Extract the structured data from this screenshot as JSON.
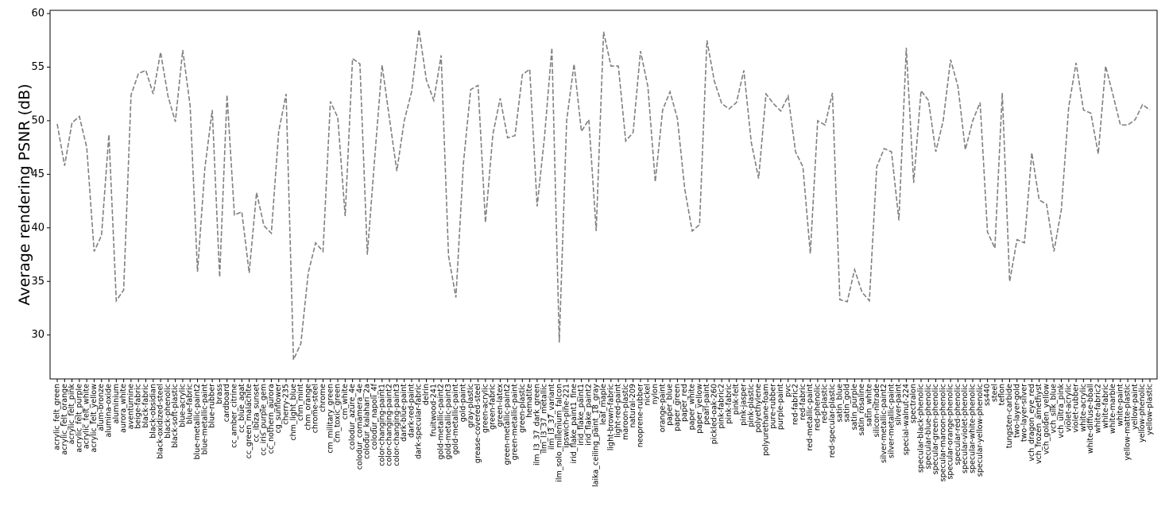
{
  "chart_data": {
    "type": "line",
    "y_label": "Average rendering PSNR (dB)",
    "categories": [
      "acrylic_felt_green",
      "acrylic_felt_orange",
      "acrylic_felt_pink",
      "acrylic_felt_purple",
      "acrylic_felt_white",
      "acrylic_felt_yellow",
      "alum-bronze",
      "alumina-oxide",
      "aluminium",
      "aurora_white",
      "aventurnine",
      "beige-fabric",
      "black-fabric",
      "black-obsidian",
      "black-oxidized-steel",
      "black-phenolic",
      "black-soft-plastic",
      "blue-acrylic",
      "blue-fabric",
      "blue-metallic-paint2",
      "blue-metallic-paint",
      "blue-rubber",
      "brass",
      "cardboard",
      "cc_amber_citrine",
      "cc_blue_agat",
      "cc_green_malachite",
      "cc_ibiza_sunset",
      "cc_iris_purple_gem",
      "cc_nothern_aurora",
      "cg_sunflower",
      "cherry-235",
      "chm_light_blue",
      "chm_mint",
      "chm_orange",
      "chrome-steel",
      "chrome",
      "cm_military_green",
      "cm_toxic_green",
      "cm_white",
      "colodur_azure_4e",
      "colodur_cornamera_4e",
      "colodur_kalahari_2a",
      "colodur_napoli_4f",
      "color-changing-paint1",
      "color-changing-paint2",
      "color-changing-paint3",
      "dark-blue-paint",
      "dark-red-paint",
      "dark-specular-fabric",
      "delrin",
      "fruitwood-241",
      "gold-metallic-paint2",
      "gold-metallic-paint3",
      "gold-metallic-paint",
      "gold-paint",
      "gray-plastic",
      "grease-covered-steel",
      "green-acrylic",
      "green-fabric",
      "green-latex",
      "green-metallic-paint2",
      "green-metallic-paint",
      "green-plastic",
      "hematite",
      "ilm_l3_37_dark_green",
      "ilm_l3_37_metallic",
      "ilm_l3_37_variant",
      "ilm_solo_millenium_falcon",
      "ipswich-pine-221",
      "irid_flake_paint1_fine",
      "irid_flake_paint1",
      "irid_flake_paint2",
      "laika_ceiling_paint_18_gray",
      "leaf_maple",
      "light-brown-fabric",
      "light-red-paint",
      "maroon-plastic",
      "natural-209",
      "neoprene-rubber",
      "nickel",
      "nylon",
      "orange-paint",
      "paper_blue",
      "paper_green",
      "paper_red",
      "paper_white",
      "paper_yellow",
      "pearl-paint",
      "pickled-oak-260",
      "pink-fabric2",
      "pink-fabric",
      "pink-felt",
      "pink-jasper",
      "pink-plastic",
      "polyethylene",
      "polyurethane-foam",
      "pure-rubber",
      "purple-paint",
      "pvc",
      "red-fabric2",
      "red-fabric",
      "red-metallic-paint",
      "red-phenolic",
      "red-plastic",
      "red-specular-plastic",
      "satin_blue",
      "satin_gold",
      "satin_purple",
      "satin_rosaline",
      "satin_white",
      "silicon-nitrade",
      "silver-metallic-paint2",
      "silver-metallic-paint",
      "silver-paint",
      "special-walnut-224",
      "spectralon",
      "specular-black-phenolic",
      "specular-blue-phenolic",
      "specular-green-phenolic",
      "specular-maroon-phenolic",
      "specular-orange-phenolic",
      "specular-red-phenolic",
      "specular-violet-phenolic",
      "specular-white-phenolic",
      "specular-yellow-phenolic",
      "ss440",
      "steel",
      "teflon",
      "tungsten-carbide",
      "two-layer-gold",
      "two-layer-silver",
      "vch_dragon_eye_red",
      "vch_frozen_amethyst",
      "vch_golden_yellow",
      "vch_silk_blue",
      "vch_ultra_pink",
      "violet-acrylic",
      "violet-rubber",
      "white-acrylic",
      "white-diffuse-bball",
      "white-fabric2",
      "white-fabric",
      "white-marble",
      "white-paint",
      "yellow-matte-plastic",
      "yellow-paint",
      "yellow-phenolic",
      "yellow-plastic"
    ],
    "values": [
      49.7,
      45.8,
      49.8,
      50.4,
      47.5,
      37.8,
      39.3,
      48.7,
      33.2,
      34.2,
      52.4,
      54.4,
      54.7,
      52.5,
      56.4,
      52.3,
      49.9,
      56.6,
      51.4,
      35.9,
      45.6,
      51.0,
      35.4,
      52.4,
      41.2,
      41.5,
      35.8,
      43.3,
      40.2,
      39.5,
      49.0,
      52.5,
      27.7,
      29.2,
      35.8,
      38.6,
      37.8,
      51.8,
      50.3,
      41.1,
      55.8,
      55.3,
      37.5,
      46.5,
      55.2,
      50.2,
      45.3,
      50.0,
      52.7,
      58.5,
      53.8,
      51.9,
      56.1,
      37.4,
      33.5,
      45.9,
      52.9,
      53.3,
      40.5,
      48.7,
      52.1,
      48.4,
      48.6,
      54.3,
      54.8,
      42.0,
      48.5,
      56.8,
      29.3,
      50.0,
      55.3,
      49.0,
      50.1,
      39.7,
      58.3,
      55.1,
      55.1,
      48.1,
      48.9,
      56.5,
      53.2,
      44.3,
      51.0,
      52.7,
      50.2,
      43.6,
      39.7,
      40.3,
      57.5,
      53.7,
      51.6,
      51.1,
      51.7,
      54.7,
      48.0,
      44.6,
      52.5,
      51.6,
      50.9,
      52.3,
      47.1,
      45.7,
      37.6,
      50.0,
      49.6,
      52.6,
      33.3,
      33.1,
      36.1,
      34.0,
      33.2,
      45.7,
      47.4,
      47.1,
      40.7,
      56.8,
      44.2,
      52.8,
      51.9,
      47.1,
      50.0,
      55.7,
      53.2,
      47.3,
      50.0,
      51.7,
      39.6,
      38.1,
      52.6,
      35.0,
      38.9,
      38.6,
      47.0,
      42.6,
      42.2,
      37.8,
      41.7,
      51.3,
      55.4,
      51.0,
      50.7,
      46.9,
      55.1,
      52.4,
      49.6,
      49.6,
      50.1,
      51.5,
      51.0
    ],
    "color": "#808080",
    "line_style": "dashed",
    "ylim": [
      25.9,
      60.3
    ],
    "yticks": [
      30,
      35,
      40,
      45,
      50,
      55,
      60
    ],
    "grid": false
  }
}
